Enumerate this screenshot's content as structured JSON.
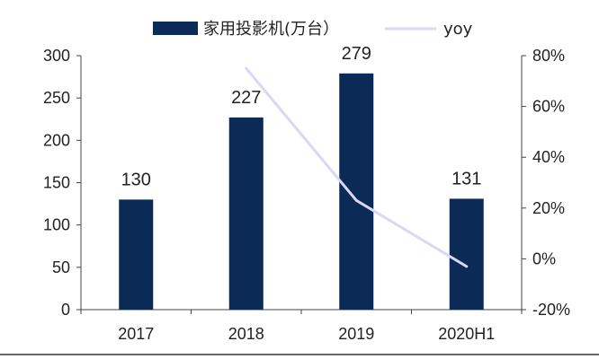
{
  "colors": {
    "bar": "#0b2a55",
    "line": "#d8d8f4",
    "axis": "#444444",
    "divider": "#333333"
  },
  "chart_data": {
    "type": "bar",
    "categories": [
      "2017",
      "2018",
      "2019",
      "2020H1"
    ],
    "series": [
      {
        "name": "家用投影机(万台）",
        "type": "bar",
        "axis": "left",
        "values": [
          130,
          227,
          279,
          131
        ],
        "data_labels": [
          "130",
          "227",
          "279",
          "131"
        ]
      },
      {
        "name": "yoy",
        "type": "line",
        "axis": "right",
        "values": [
          null,
          75,
          23,
          -3
        ]
      }
    ],
    "ylim": [
      0,
      300
    ],
    "y_ticks": [
      "0",
      "50",
      "100",
      "150",
      "200",
      "250",
      "300"
    ],
    "y2lim": [
      -20,
      80
    ],
    "y2_ticks": [
      "-20%",
      "0%",
      "20%",
      "40%",
      "60%",
      "80%"
    ],
    "grid": false,
    "legend_position": "top"
  }
}
